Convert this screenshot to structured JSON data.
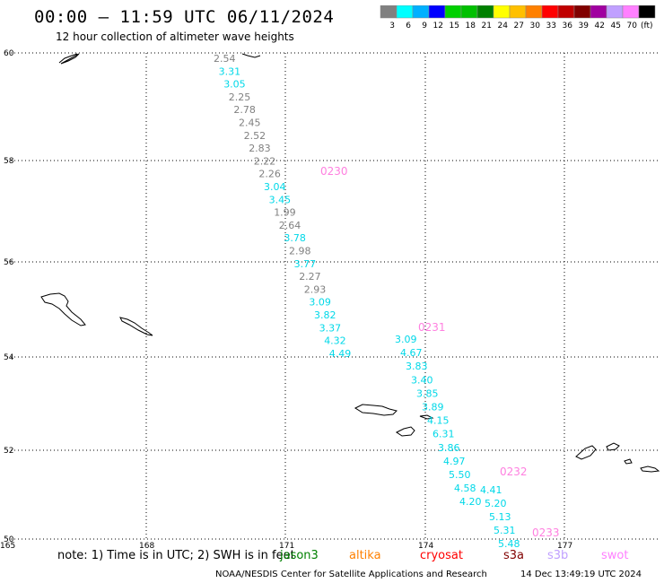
{
  "title": "00:00 – 11:59 UTC 06/11/2024",
  "subtitle": "12 hour collection of altimeter wave heights",
  "legend": {
    "colors": [
      "#808080",
      "#00ffff",
      "#00b0ff",
      "#0000ff",
      "#00d000",
      "#00c000",
      "#008000",
      "#ffff00",
      "#ffc000",
      "#ff8000",
      "#ff0000",
      "#c00000",
      "#800000",
      "#a000a0",
      "#c0a0ff",
      "#ff80ff",
      "#000000"
    ],
    "labels": [
      "3",
      "6",
      "9",
      "12",
      "15",
      "18",
      "21",
      "24",
      "27",
      "30",
      "33",
      "36",
      "39",
      "42",
      "45",
      "70",
      "(ft)"
    ]
  },
  "map_axes": {
    "lat_labels": [
      "60",
      "58",
      "56",
      "54",
      "52",
      "50"
    ],
    "lon_labels": [
      "165",
      "168",
      "171",
      "174",
      "177"
    ]
  },
  "tracks": [
    {
      "pass_label": "0230",
      "pass_color": "#ff80e0",
      "points": [
        {
          "v": "2.54",
          "c": "#808080"
        },
        {
          "v": "3.31",
          "c": "#00d8e8"
        },
        {
          "v": "3.05",
          "c": "#00d8e8"
        },
        {
          "v": "2.25",
          "c": "#808080"
        },
        {
          "v": "2.78",
          "c": "#808080"
        },
        {
          "v": "2.45",
          "c": "#808080"
        },
        {
          "v": "2.52",
          "c": "#808080"
        },
        {
          "v": "2.83",
          "c": "#808080"
        },
        {
          "v": "2.22",
          "c": "#808080"
        },
        {
          "v": "2.26",
          "c": "#808080"
        },
        {
          "v": "3.04",
          "c": "#00d8e8"
        },
        {
          "v": "3.45",
          "c": "#00d8e8"
        },
        {
          "v": "1.99",
          "c": "#808080"
        },
        {
          "v": "2.64",
          "c": "#808080"
        },
        {
          "v": "3.78",
          "c": "#00d8e8"
        },
        {
          "v": "2.98",
          "c": "#808080"
        },
        {
          "v": "3.77",
          "c": "#00d8e8"
        },
        {
          "v": "2.27",
          "c": "#808080"
        },
        {
          "v": "2.93",
          "c": "#808080"
        },
        {
          "v": "3.09",
          "c": "#00d8e8"
        },
        {
          "v": "3.82",
          "c": "#00d8e8"
        },
        {
          "v": "3.37",
          "c": "#00d8e8"
        },
        {
          "v": "4.32",
          "c": "#00d8e8"
        },
        {
          "v": "4.49",
          "c": "#00d8e8"
        }
      ]
    },
    {
      "pass_label": "0231",
      "pass_color": "#ff80e0",
      "points": [
        {
          "v": "3.09",
          "c": "#00d8e8"
        },
        {
          "v": "4.67",
          "c": "#00d8e8"
        },
        {
          "v": "3.83",
          "c": "#00d8e8"
        },
        {
          "v": "3.40",
          "c": "#00d8e8"
        },
        {
          "v": "3.85",
          "c": "#00d8e8"
        },
        {
          "v": "3.89",
          "c": "#00d8e8"
        },
        {
          "v": "4.15",
          "c": "#00d8e8"
        },
        {
          "v": "6.31",
          "c": "#00d8e8"
        },
        {
          "v": "3.86",
          "c": "#00d8e8"
        },
        {
          "v": "4.97",
          "c": "#00d8e8"
        },
        {
          "v": "5.50",
          "c": "#00d8e8"
        },
        {
          "v": "4.58",
          "c": "#00d8e8"
        },
        {
          "v": "4.20",
          "c": "#00d8e8"
        }
      ]
    },
    {
      "pass_label": "0232",
      "pass_color": "#ff80e0",
      "points": [
        {
          "v": "4.41",
          "c": "#00d8e8"
        },
        {
          "v": "5.20",
          "c": "#00d8e8"
        },
        {
          "v": "5.13",
          "c": "#00d8e8"
        },
        {
          "v": "5.31",
          "c": "#00d8e8"
        },
        {
          "v": "5.48",
          "c": "#00d8e8"
        }
      ]
    },
    {
      "pass_label": "0233",
      "pass_color": "#ff80e0",
      "points": []
    }
  ],
  "note_text": "note: 1) Time is in UTC; 2) SWH is in feet",
  "missions": [
    {
      "name": "jason3",
      "color": "#008000"
    },
    {
      "name": "altika",
      "color": "#ff8000"
    },
    {
      "name": "cryosat",
      "color": "#ff0000"
    },
    {
      "name": "s3a",
      "color": "#800000"
    },
    {
      "name": "s3b",
      "color": "#c0a0ff"
    },
    {
      "name": "swot",
      "color": "#ff80ff"
    }
  ],
  "footer": "NOAA/NESDIS Center for Satellite Applications and Research",
  "footer_timestamp": "14 Dec 13:49:19 UTC 2024"
}
